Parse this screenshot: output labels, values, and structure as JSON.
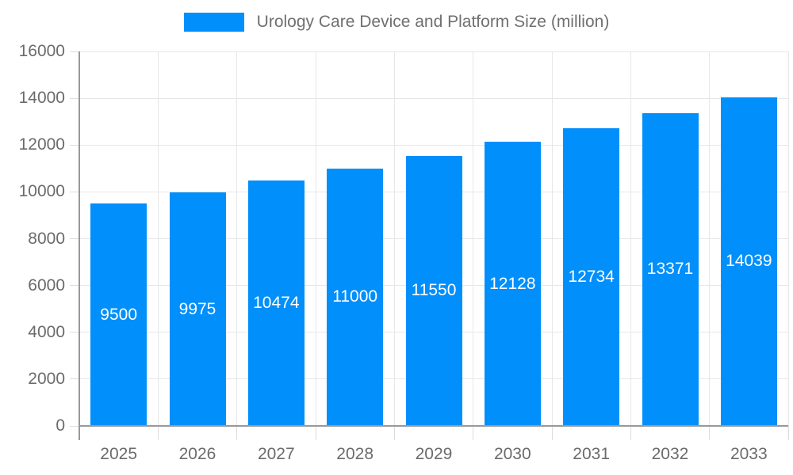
{
  "chart_data": {
    "type": "bar",
    "title": "Urology Care Device and Platform Size (million)",
    "categories": [
      "2025",
      "2026",
      "2027",
      "2028",
      "2029",
      "2030",
      "2031",
      "2032",
      "2033"
    ],
    "values": [
      9500,
      9975,
      10474,
      11000,
      11550,
      12128,
      12734,
      13371,
      14039
    ],
    "xlabel": "",
    "ylabel": "",
    "ylim": [
      0,
      16000
    ],
    "ytick_step": 2000,
    "ytick_labels": [
      "0",
      "2000",
      "4000",
      "6000",
      "8000",
      "10000",
      "12000",
      "14000",
      "16000"
    ],
    "grid": true,
    "value_labels_shown": true,
    "legend_position": "top-center",
    "colors": {
      "bar": "#008FFB",
      "value_label": "#FFFFFF",
      "axis_label": "#6B6B6B",
      "legend_label": "#707070",
      "gridline": "#E7E7E7",
      "tick": "#DDDDDD",
      "axis_line": "#999999",
      "background": "#FFFFFF"
    }
  }
}
